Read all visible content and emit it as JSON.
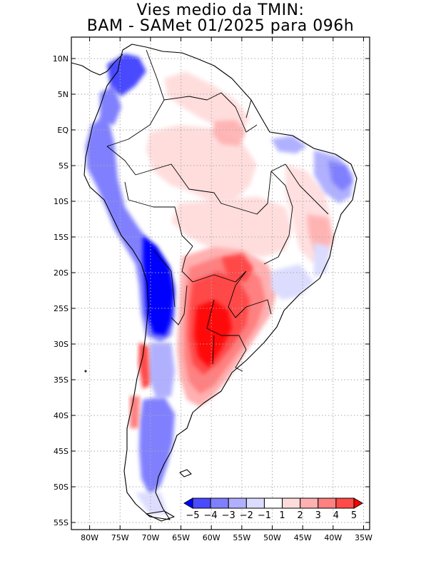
{
  "figure": {
    "title_line1": "Vies medio da TMIN:",
    "title_line2": "BAM - SAMet 01/2025  para 096h"
  },
  "axes": {
    "lon_ticks": [
      {
        "value": -80,
        "label": "80W"
      },
      {
        "value": -75,
        "label": "75W"
      },
      {
        "value": -70,
        "label": "70W"
      },
      {
        "value": -65,
        "label": "65W"
      },
      {
        "value": -60,
        "label": "60W"
      },
      {
        "value": -55,
        "label": "55W"
      },
      {
        "value": -50,
        "label": "50W"
      },
      {
        "value": -45,
        "label": "45W"
      },
      {
        "value": -40,
        "label": "40W"
      },
      {
        "value": -35,
        "label": "35W"
      }
    ],
    "lat_ticks": [
      {
        "value": 10,
        "label": "10N"
      },
      {
        "value": 5,
        "label": "5N"
      },
      {
        "value": 0,
        "label": "EQ"
      },
      {
        "value": -5,
        "label": "5S"
      },
      {
        "value": -10,
        "label": "10S"
      },
      {
        "value": -15,
        "label": "15S"
      },
      {
        "value": -20,
        "label": "20S"
      },
      {
        "value": -25,
        "label": "25S"
      },
      {
        "value": -30,
        "label": "30S"
      },
      {
        "value": -35,
        "label": "35S"
      },
      {
        "value": -40,
        "label": "40S"
      },
      {
        "value": -45,
        "label": "45S"
      },
      {
        "value": -50,
        "label": "50S"
      },
      {
        "value": -55,
        "label": "55S"
      }
    ],
    "lon_range": [
      -83,
      -34
    ],
    "lat_range": [
      -56,
      13
    ]
  },
  "colorbar": {
    "levels": [
      "-5",
      "-4",
      "-3",
      "-2",
      "-1",
      "1",
      "2",
      "3",
      "4",
      "5"
    ],
    "colors": [
      "#0000ff",
      "#4a4aff",
      "#8080ff",
      "#b0b0ff",
      "#dcdcff",
      "#ffffff",
      "#ffdcdc",
      "#ffb0b0",
      "#ff8080",
      "#ff4a4a",
      "#ff0000"
    ]
  },
  "colors": {
    "coast": "#000000",
    "grid": "#aaaaaa",
    "frame": "#000000"
  }
}
